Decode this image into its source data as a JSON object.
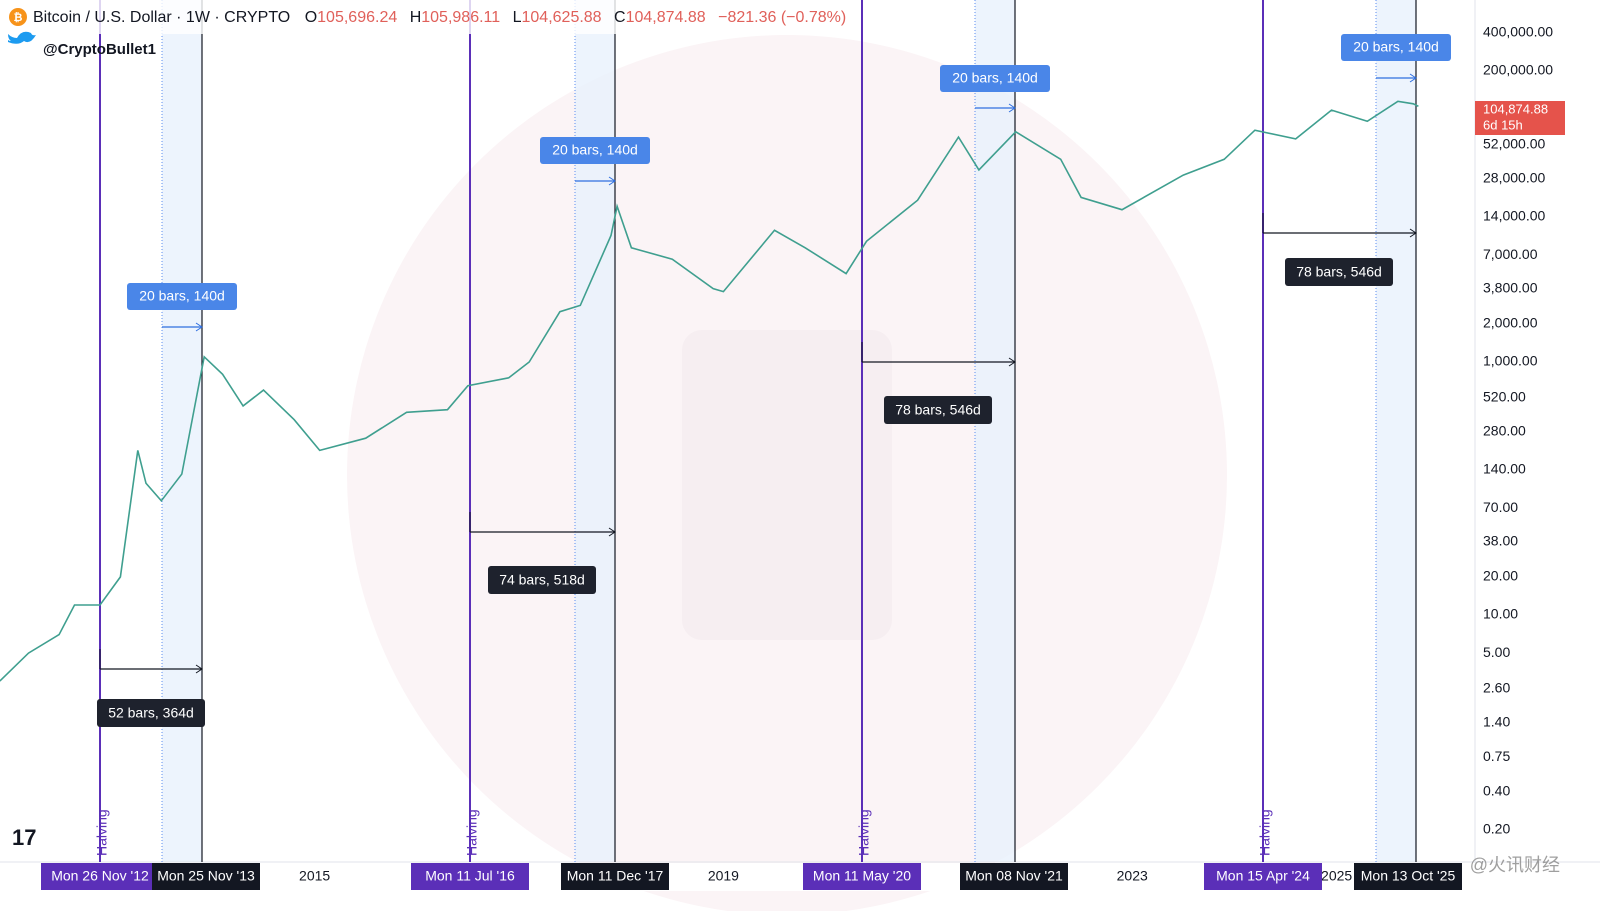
{
  "header": {
    "symbol": "Bitcoin / U.S. Dollar · 1W · CRYPTO",
    "open_label": "O",
    "open": "105,696.24",
    "high_label": "H",
    "high": "105,986.11",
    "low_label": "L",
    "low": "104,625.88",
    "close_label": "C",
    "close": "104,874.88",
    "change": "−821.36 (−0.78%)",
    "author": "@CryptoBullet1"
  },
  "axis": {
    "yticks": [
      {
        "value": 400000,
        "label": "400,000.00"
      },
      {
        "value": 200000,
        "label": "200,000.00"
      },
      {
        "value": 52000,
        "label": "52,000.00"
      },
      {
        "value": 28000,
        "label": "28,000.00"
      },
      {
        "value": 14000,
        "label": "14,000.00"
      },
      {
        "value": 7000,
        "label": "7,000.00"
      },
      {
        "value": 3800,
        "label": "3,800.00"
      },
      {
        "value": 2000,
        "label": "2,000.00"
      },
      {
        "value": 1000,
        "label": "1,000.00"
      },
      {
        "value": 520,
        "label": "520.00"
      },
      {
        "value": 280,
        "label": "280.00"
      },
      {
        "value": 140,
        "label": "140.00"
      },
      {
        "value": 70,
        "label": "70.00"
      },
      {
        "value": 38,
        "label": "38.00"
      },
      {
        "value": 20,
        "label": "20.00"
      },
      {
        "value": 10,
        "label": "10.00"
      },
      {
        "value": 5,
        "label": "5.00"
      },
      {
        "value": 2.6,
        "label": "2.60"
      },
      {
        "value": 1.4,
        "label": "1.40"
      },
      {
        "value": 0.75,
        "label": "0.75"
      },
      {
        "value": 0.4,
        "label": "0.40"
      },
      {
        "value": 0.2,
        "label": "0.20"
      }
    ],
    "xticks": [
      2015,
      2019,
      2023,
      2025
    ],
    "last_price": "104,874.88",
    "countdown": "6d 15h"
  },
  "price": {
    "x": [
      2011.92,
      2012.2,
      2012.5,
      2012.65,
      2012.9,
      2013.1,
      2013.27,
      2013.35,
      2013.5,
      2013.7,
      2013.92,
      2014.1,
      2014.3,
      2014.5,
      2014.8,
      2015.05,
      2015.5,
      2015.9,
      2016.3,
      2016.5,
      2016.9,
      2017.1,
      2017.4,
      2017.6,
      2017.9,
      2017.96,
      2018.1,
      2018.5,
      2018.9,
      2019.0,
      2019.5,
      2019.8,
      2020.2,
      2020.4,
      2020.9,
      2021.3,
      2021.5,
      2021.86,
      2022.3,
      2022.5,
      2022.9,
      2023.5,
      2023.9,
      2024.2,
      2024.6,
      2024.95,
      2025.3,
      2025.6,
      2025.75,
      2025.8
    ],
    "values": [
      3,
      5,
      7,
      12,
      12,
      20,
      200,
      110,
      80,
      130,
      1100,
      800,
      450,
      600,
      350,
      200,
      250,
      400,
      420,
      650,
      750,
      1000,
      2500,
      2800,
      10000,
      17000,
      8000,
      6500,
      3800,
      3600,
      11000,
      8000,
      5000,
      9000,
      19000,
      60000,
      33000,
      66000,
      40000,
      20000,
      16000,
      30000,
      40000,
      68000,
      58000,
      98000,
      80000,
      115000,
      110000,
      105000
    ]
  },
  "cycles": [
    {
      "halving": "Halving",
      "halving_date": "Mon 26 Nov '12",
      "peak_date": "Mon 25 Nov '13",
      "run": "52 bars, 364d",
      "tail": "20 bars, 140d"
    },
    {
      "halving": "Halving",
      "halving_date": "Mon 11 Jul '16",
      "peak_date": "Mon 11 Dec '17",
      "run": "74 bars, 518d",
      "tail": "20 bars, 140d"
    },
    {
      "halving": "Halving",
      "halving_date": "Mon 11 May '20",
      "peak_date": "Mon 08 Nov '21",
      "run": "78 bars, 546d",
      "tail": "20 bars, 140d"
    },
    {
      "halving": "Halving",
      "halving_date": "Mon 15 Apr '24",
      "peak_date": "Mon 13 Oct '25",
      "run": "78 bars, 546d",
      "tail": "20 bars, 140d"
    }
  ],
  "watermark": "@火讯财经"
}
